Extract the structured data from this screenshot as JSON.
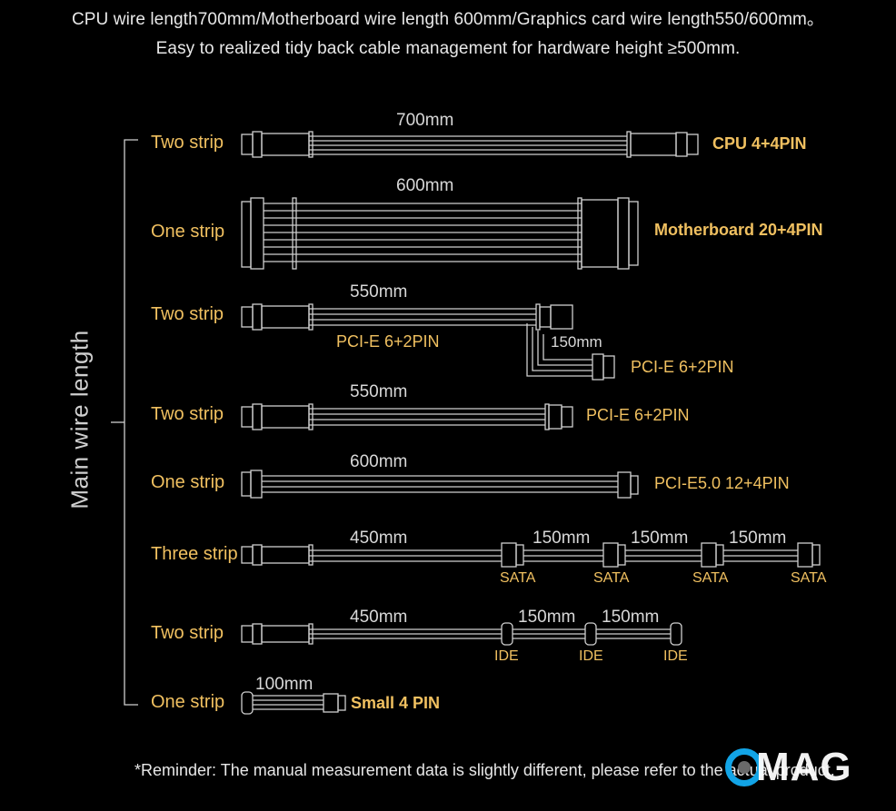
{
  "header": {
    "line1": "CPU wire length700mm/Motherboard wire length 600mm/Graphics card wire length550/600mm。",
    "line2": "Easy to realized tidy back cable management for hardware height ≥500mm."
  },
  "axis_label": "Main wire length",
  "rows": [
    {
      "strip": "Two strip",
      "length": "700mm",
      "connector": "CPU 4+4PIN"
    },
    {
      "strip": "One strip",
      "length": "600mm",
      "connector": "Motherboard 20+4PIN"
    },
    {
      "strip": "Two strip",
      "length": "550mm",
      "connector": "PCI-E 6+2PIN",
      "branch_length": "150mm",
      "branch_connector": "PCI-E 6+2PIN"
    },
    {
      "strip": "Two strip",
      "length": "550mm",
      "connector": "PCI-E 6+2PIN"
    },
    {
      "strip": "One strip",
      "length": "600mm",
      "connector": "PCI-E5.0 12+4PIN"
    },
    {
      "strip": "Three strip",
      "length": "450mm",
      "segments": [
        "150mm",
        "150mm",
        "150mm"
      ],
      "connector_tags": [
        "SATA",
        "SATA",
        "SATA",
        "SATA"
      ]
    },
    {
      "strip": "Two strip",
      "length": "450mm",
      "segments": [
        "150mm",
        "150mm"
      ],
      "connector_tags": [
        "IDE",
        "IDE",
        "IDE"
      ]
    },
    {
      "strip": "One strip",
      "length": "100mm",
      "connector": "Small 4 PIN"
    }
  ],
  "footer": "*Reminder: The manual measurement data is slightly different, please refer to the actual product.",
  "logo": {
    "text": "MAG",
    "colors": {
      "ring": "#12a4e6",
      "text": "#ffffff"
    }
  },
  "colors": {
    "background": "#000000",
    "accent": "#f0c060",
    "line": "#cfcfcf"
  }
}
